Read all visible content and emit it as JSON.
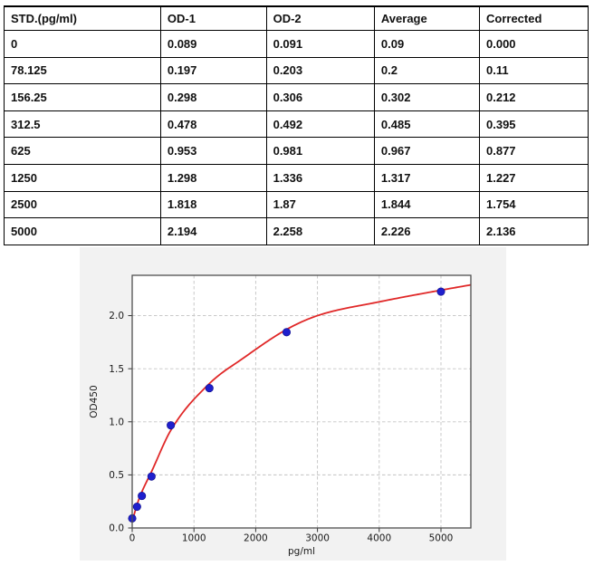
{
  "table": {
    "columns": [
      "STD.(pg/ml)",
      "OD-1",
      "OD-2",
      "Average",
      "Corrected"
    ],
    "column_widths_pct": [
      26.8,
      18.1,
      18.5,
      18.0,
      18.6
    ],
    "rows": [
      [
        "0",
        "0.089",
        "0.091",
        "0.09",
        "0.000"
      ],
      [
        "78.125",
        "0.197",
        "0.203",
        "0.2",
        "0.11"
      ],
      [
        "156.25",
        "0.298",
        "0.306",
        "0.302",
        "0.212"
      ],
      [
        "312.5",
        "0.478",
        "0.492",
        "0.485",
        "0.395"
      ],
      [
        "625",
        "0.953",
        "0.981",
        "0.967",
        "0.877"
      ],
      [
        "1250",
        "1.298",
        "1.336",
        "1.317",
        "1.227"
      ],
      [
        "2500",
        "1.818",
        "1.87",
        "1.844",
        "1.754"
      ],
      [
        "5000",
        "2.194",
        "2.258",
        "2.226",
        "2.136"
      ]
    ]
  },
  "chart_data": {
    "type": "scatter",
    "title": "",
    "xlabel": "pg/ml",
    "ylabel": "OD450",
    "xlim": [
      0,
      5484
    ],
    "ylim": [
      0,
      2.38
    ],
    "x_ticks": [
      0,
      1000,
      2000,
      3000,
      4000,
      5000
    ],
    "y_ticks": [
      0.0,
      0.5,
      1.0,
      1.5,
      2.0
    ],
    "grid": true,
    "legend_position": "none",
    "points": [
      [
        0,
        0.09
      ],
      [
        78.125,
        0.2
      ],
      [
        156.25,
        0.302
      ],
      [
        312.5,
        0.485
      ],
      [
        625,
        0.967
      ],
      [
        1250,
        1.317
      ],
      [
        2500,
        1.844
      ],
      [
        5000,
        2.226
      ]
    ],
    "fit_curve": [
      [
        0,
        0.06
      ],
      [
        78.125,
        0.22
      ],
      [
        156.25,
        0.34
      ],
      [
        312.5,
        0.53
      ],
      [
        625,
        0.92
      ],
      [
        1250,
        1.36
      ],
      [
        1800,
        1.6
      ],
      [
        2500,
        1.87
      ],
      [
        3000,
        2.0
      ],
      [
        4000,
        2.13
      ],
      [
        5000,
        2.24
      ],
      [
        5484,
        2.29
      ]
    ],
    "colors": {
      "point": "#1f1fcd",
      "point_edge": "#10108f",
      "curve": "#e02828",
      "panel_bg": "#f2f2f2",
      "plot_bg": "#ffffff",
      "grid": "#c3c3c3",
      "border": "#4f4f4f",
      "text": "#1a1a1a"
    }
  }
}
